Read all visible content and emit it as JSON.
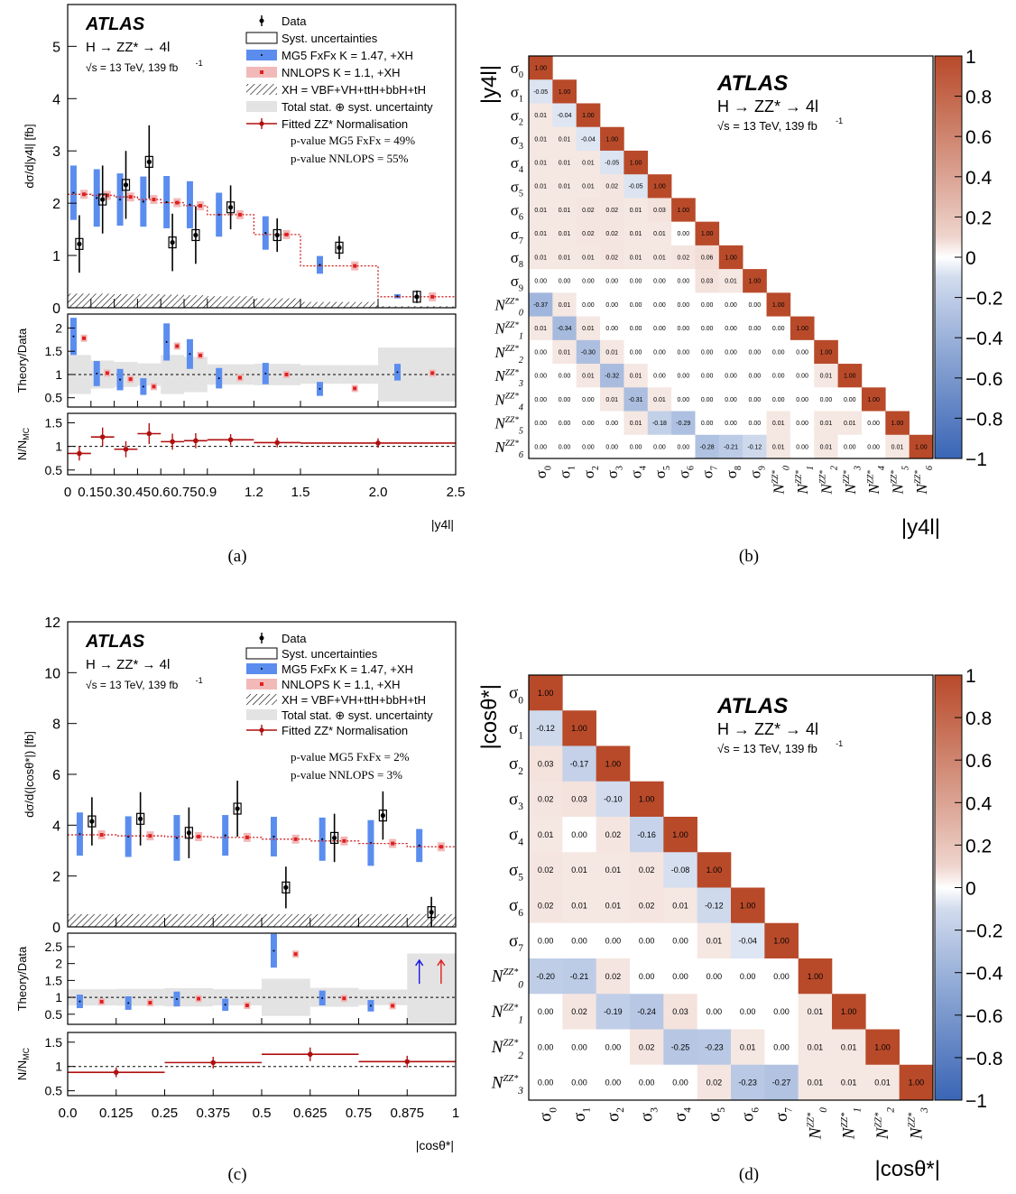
{
  "captions": {
    "a": "(a)",
    "b": "(b)",
    "c": "(c)",
    "d": "(d)"
  },
  "colors": {
    "mg5": "#5b8def",
    "nnlops": "#f2b9b9",
    "nnlops_marker": "#e02020",
    "fitted": "#b01010",
    "band": "#e3e3e3",
    "corr_pos": "#b84a2a",
    "corr_neg": "#3a66b5"
  },
  "chart_data": [
    {
      "id": "a",
      "type": "line",
      "atlas": "ATLAS",
      "process": "H → ZZ* → 4l",
      "energy": "√s = 13 TeV, 139 fb",
      "energy_sup": "-1",
      "ylabel": "dσ/d|y4l| [fb]",
      "xlabel": "|y4l|",
      "ratio1_label": "Theory/Data",
      "ratio2_label": "N/N",
      "ratio2_sub": "MC",
      "legend": [
        "Data",
        "Syst. uncertainties",
        "MG5 FxFx K = 1.47, +XH",
        "NNLOPS K = 1.1, +XH",
        "XH = VBF+VH+ttH+bbH+tH",
        "Total stat. ⊕ syst. uncertainty",
        "Fitted ZZ* Normalisation"
      ],
      "pvalues": [
        "p-value MG5 FxFx = 49%",
        "p-value NNLOPS = 55%"
      ],
      "xlim": [
        0,
        2.5
      ],
      "ylim": [
        0,
        5.8
      ],
      "xticks": [
        0,
        0.15,
        0.3,
        0.45,
        0.6,
        0.75,
        0.9,
        1.2,
        1.5,
        2.0,
        2.5
      ],
      "xticklabels": [
        "0",
        "0.15",
        "0.3",
        "0.45",
        "0.6",
        "0.75",
        "0.9",
        "1.2",
        "1.5",
        "2.0",
        "2.5"
      ],
      "yticks": [
        0,
        1,
        2,
        3,
        4,
        5
      ],
      "bins": [
        0,
        0.15,
        0.3,
        0.45,
        0.6,
        0.75,
        0.9,
        1.2,
        1.5,
        2.0,
        2.5
      ],
      "data_centers": [
        0.075,
        0.225,
        0.375,
        0.525,
        0.675,
        0.825,
        1.05,
        1.35,
        1.75,
        2.25
      ],
      "data_values": [
        1.22,
        2.07,
        2.35,
        2.79,
        1.25,
        1.39,
        1.92,
        1.39,
        1.15,
        0.21
      ],
      "data_errors": [
        0.55,
        0.65,
        0.65,
        0.7,
        0.55,
        0.55,
        0.42,
        0.32,
        0.22,
        0.12
      ],
      "mg5_values": [
        2.2,
        2.1,
        2.07,
        2.03,
        2.02,
        1.97,
        1.78,
        1.43,
        0.82,
        0.22
      ],
      "mg5_unc": [
        0.52,
        0.55,
        0.5,
        0.48,
        0.5,
        0.45,
        0.42,
        0.32,
        0.17,
        0.04
      ],
      "nnlops_values": [
        2.17,
        2.15,
        2.12,
        2.07,
        2.01,
        1.95,
        1.78,
        1.4,
        0.8,
        0.21
      ],
      "xh_values": [
        0.27,
        0.27,
        0.26,
        0.26,
        0.25,
        0.24,
        0.22,
        0.18,
        0.11,
        0.03
      ],
      "ratio1_ylim": [
        0.3,
        2.3
      ],
      "ratio1_yticks": [
        0.5,
        1,
        1.5,
        2
      ],
      "ratio_mg5": [
        1.82,
        1.02,
        0.89,
        0.74,
        1.7,
        1.44,
        0.92,
        1.02,
        0.69,
        1.05
      ],
      "ratio_mg5_unc": [
        0.4,
        0.27,
        0.23,
        0.18,
        0.4,
        0.32,
        0.22,
        0.23,
        0.15,
        0.18
      ],
      "ratio_nnlops": [
        1.78,
        1.03,
        0.9,
        0.74,
        1.61,
        1.41,
        0.93,
        1.0,
        0.7,
        1.03
      ],
      "ratio_band": [
        0.42,
        0.3,
        0.27,
        0.24,
        0.42,
        0.38,
        0.22,
        0.23,
        0.2,
        0.58
      ],
      "ratio2_ylim": [
        0.4,
        1.7
      ],
      "ratio2_yticks": [
        0.5,
        1,
        1.5
      ],
      "norm_bins": [
        0,
        0.15,
        0.3,
        0.45,
        0.6,
        0.75,
        0.9,
        1.2,
        1.5,
        2.5
      ],
      "norm_values": [
        0.85,
        1.2,
        0.94,
        1.27,
        1.1,
        1.12,
        1.14,
        1.08,
        1.07
      ],
      "norm_errors": [
        0.15,
        0.2,
        0.17,
        0.22,
        0.17,
        0.16,
        0.12,
        0.1,
        0.1
      ]
    },
    {
      "id": "b",
      "type": "heatmap",
      "atlas": "ATLAS",
      "process": "H → ZZ* → 4l",
      "energy": "√s = 13 TeV, 139 fb",
      "energy_sup": "-1",
      "axis_label": "|y4l|",
      "labels": [
        [
          "σ",
          "0"
        ],
        [
          "σ",
          "1"
        ],
        [
          "σ",
          "2"
        ],
        [
          "σ",
          "3"
        ],
        [
          "σ",
          "4"
        ],
        [
          "σ",
          "5"
        ],
        [
          "σ",
          "6"
        ],
        [
          "σ",
          "7"
        ],
        [
          "σ",
          "8"
        ],
        [
          "σ",
          "9"
        ],
        [
          "N",
          "0"
        ],
        [
          "N",
          "1"
        ],
        [
          "N",
          "2"
        ],
        [
          "N",
          "3"
        ],
        [
          "N",
          "4"
        ],
        [
          "N",
          "5"
        ],
        [
          "N",
          "6"
        ]
      ],
      "n_sup": "ZZ*",
      "colorbar_ticks": [
        "1",
        "0.8",
        "0.6",
        "0.4",
        "0.2",
        "0",
        "−0.2",
        "−0.4",
        "−0.6",
        "−0.8",
        "−1"
      ],
      "matrix": [
        [
          1.0
        ],
        [
          -0.05,
          1.0
        ],
        [
          0.01,
          -0.04,
          1.0
        ],
        [
          0.01,
          0.01,
          -0.04,
          1.0
        ],
        [
          0.01,
          0.01,
          0.01,
          -0.05,
          1.0
        ],
        [
          0.01,
          0.01,
          0.01,
          0.02,
          -0.05,
          1.0
        ],
        [
          0.01,
          0.01,
          0.02,
          0.02,
          0.01,
          0.03,
          1.0
        ],
        [
          0.01,
          0.01,
          0.02,
          0.02,
          0.01,
          0.01,
          -0.0,
          1.0
        ],
        [
          0.01,
          0.01,
          0.01,
          0.02,
          0.01,
          0.01,
          0.02,
          0.06,
          1.0
        ],
        [
          0.0,
          0.0,
          0.0,
          0.0,
          0.0,
          0.0,
          0.0,
          0.03,
          0.01,
          1.0
        ],
        [
          -0.37,
          0.01,
          0.0,
          0.0,
          -0.0,
          -0.0,
          0.0,
          0.0,
          -0.0,
          -0.0,
          1.0
        ],
        [
          0.01,
          -0.34,
          0.01,
          0.0,
          -0.0,
          -0.0,
          0.0,
          0.0,
          -0.0,
          -0.0,
          0.0,
          1.0
        ],
        [
          0.0,
          0.01,
          -0.3,
          0.01,
          0.0,
          -0.0,
          -0.0,
          -0.0,
          -0.0,
          -0.0,
          0.0,
          0.0,
          1.0
        ],
        [
          0.0,
          0.0,
          0.01,
          -0.32,
          0.01,
          -0.0,
          -0.0,
          -0.0,
          -0.0,
          -0.0,
          0.0,
          0.0,
          0.01,
          1.0
        ],
        [
          -0.0,
          -0.0,
          0.0,
          0.01,
          -0.31,
          0.01,
          0.0,
          -0.0,
          -0.0,
          -0.0,
          0.0,
          0.0,
          0.0,
          0.0,
          1.0
        ],
        [
          0.0,
          0.0,
          -0.0,
          -0.0,
          0.01,
          -0.18,
          -0.29,
          0.0,
          -0.0,
          -0.0,
          0.01,
          0.0,
          0.01,
          0.01,
          0.0,
          1.0
        ],
        [
          0.0,
          0.0,
          -0.0,
          -0.0,
          0.0,
          -0.0,
          0.0,
          -0.28,
          -0.21,
          -0.12,
          0.01,
          0.0,
          0.01,
          0.0,
          0.0,
          0.01,
          1.0
        ]
      ]
    },
    {
      "id": "c",
      "type": "line",
      "atlas": "ATLAS",
      "process": "H → ZZ* → 4l",
      "energy": "√s = 13 TeV, 139 fb",
      "energy_sup": "-1",
      "ylabel": "dσ/d(|cosθ*|) [fb]",
      "xlabel": "|cosθ*|",
      "ratio1_label": "Theory/Data",
      "ratio2_label": "N/N",
      "ratio2_sub": "MC",
      "legend": [
        "Data",
        "Syst. uncertainties",
        "MG5 FxFx K = 1.47, +XH",
        "NNLOPS K = 1.1, +XH",
        "XH = VBF+VH+ttH+bbH+tH",
        "Total stat. ⊕ syst. uncertainty",
        "Fitted ZZ* Normalisation"
      ],
      "pvalues": [
        "p-value MG5 FxFx = 2%",
        "p-value NNLOPS = 3%"
      ],
      "xlim": [
        0,
        1
      ],
      "ylim": [
        0,
        12
      ],
      "xticks": [
        0,
        0.125,
        0.25,
        0.375,
        0.5,
        0.625,
        0.75,
        0.875,
        1
      ],
      "xticklabels": [
        "0.0",
        "0.125",
        "0.25",
        "0.375",
        "0.5",
        "0.625",
        "0.75",
        "0.875",
        "1"
      ],
      "yticks": [
        0,
        2,
        4,
        6,
        8,
        10,
        12
      ],
      "bins": [
        0,
        0.125,
        0.25,
        0.375,
        0.5,
        0.625,
        0.75,
        0.875,
        1.0
      ],
      "data_centers": [
        0.0625,
        0.1875,
        0.3125,
        0.4375,
        0.5625,
        0.6875,
        0.8125,
        0.9375
      ],
      "data_values": [
        4.15,
        4.25,
        3.7,
        4.65,
        1.55,
        3.5,
        4.38,
        0.58
      ],
      "data_errors": [
        0.95,
        1.05,
        1.0,
        1.1,
        0.82,
        0.95,
        0.95,
        0.6
      ],
      "mg5_values": [
        3.65,
        3.55,
        3.5,
        3.6,
        3.55,
        3.45,
        3.3,
        3.2
      ],
      "mg5_unc": [
        0.85,
        0.8,
        0.9,
        0.8,
        0.78,
        0.85,
        0.9,
        0.65
      ],
      "nnlops_values": [
        3.62,
        3.58,
        3.55,
        3.52,
        3.45,
        3.38,
        3.28,
        3.15
      ],
      "xh_values": [
        0.5,
        0.5,
        0.5,
        0.5,
        0.5,
        0.5,
        0.5,
        0.5
      ],
      "ratio1_ylim": [
        0.2,
        2.9
      ],
      "ratio1_yticks": [
        0.5,
        1,
        1.5,
        2,
        2.5
      ],
      "ratio_mg5": [
        0.88,
        0.83,
        0.95,
        0.78,
        2.38,
        0.98,
        0.75,
        5.5
      ],
      "ratio_mg5_unc": [
        0.2,
        0.2,
        0.22,
        0.18,
        0.5,
        0.22,
        0.17,
        1.0
      ],
      "ratio_nnlops": [
        0.87,
        0.84,
        0.96,
        0.76,
        2.28,
        0.97,
        0.75,
        5.4
      ],
      "ratio_band": [
        0.24,
        0.25,
        0.27,
        0.24,
        0.55,
        0.28,
        0.23,
        1.3
      ],
      "ratio2_ylim": [
        0.4,
        1.7
      ],
      "ratio2_yticks": [
        0.5,
        1,
        1.5
      ],
      "norm_bins": [
        0,
        0.25,
        0.5,
        0.75,
        1.0
      ],
      "norm_values": [
        0.88,
        1.08,
        1.25,
        1.1
      ],
      "norm_errors": [
        0.1,
        0.12,
        0.14,
        0.12
      ]
    },
    {
      "id": "d",
      "type": "heatmap",
      "atlas": "ATLAS",
      "process": "H → ZZ* → 4l",
      "energy": "√s = 13 TeV, 139 fb",
      "energy_sup": "-1",
      "axis_label": "|cosθ*|",
      "labels": [
        [
          "σ",
          "0"
        ],
        [
          "σ",
          "1"
        ],
        [
          "σ",
          "2"
        ],
        [
          "σ",
          "3"
        ],
        [
          "σ",
          "4"
        ],
        [
          "σ",
          "5"
        ],
        [
          "σ",
          "6"
        ],
        [
          "σ",
          "7"
        ],
        [
          "N",
          "0"
        ],
        [
          "N",
          "1"
        ],
        [
          "N",
          "2"
        ],
        [
          "N",
          "3"
        ]
      ],
      "n_sup": "ZZ*",
      "colorbar_ticks": [
        "1",
        "0.8",
        "0.6",
        "0.4",
        "0.2",
        "0",
        "−0.2",
        "−0.4",
        "−0.6",
        "−0.8",
        "−1"
      ],
      "matrix": [
        [
          1.0
        ],
        [
          -0.12,
          1.0
        ],
        [
          0.03,
          -0.17,
          1.0
        ],
        [
          0.02,
          0.03,
          -0.1,
          1.0
        ],
        [
          0.01,
          0.0,
          0.02,
          -0.16,
          1.0
        ],
        [
          0.02,
          0.01,
          0.01,
          0.02,
          -0.08,
          1.0
        ],
        [
          0.02,
          0.01,
          0.01,
          0.02,
          0.01,
          -0.12,
          1.0
        ],
        [
          0.0,
          0.0,
          -0.0,
          0.0,
          -0.0,
          0.01,
          -0.04,
          1.0
        ],
        [
          -0.2,
          -0.21,
          0.02,
          -0.0,
          -0.0,
          -0.0,
          0.0,
          0.0,
          1.0
        ],
        [
          -0.0,
          0.02,
          -0.19,
          -0.24,
          0.03,
          -0.0,
          0.0,
          0.0,
          0.01,
          1.0
        ],
        [
          -0.0,
          -0.0,
          -0.0,
          0.02,
          -0.25,
          -0.23,
          0.01,
          0.0,
          0.01,
          0.01,
          1.0
        ],
        [
          0.0,
          0.0,
          0.0,
          0.0,
          -0.0,
          0.02,
          -0.23,
          -0.27,
          0.01,
          0.01,
          0.01,
          1.0
        ]
      ]
    }
  ]
}
